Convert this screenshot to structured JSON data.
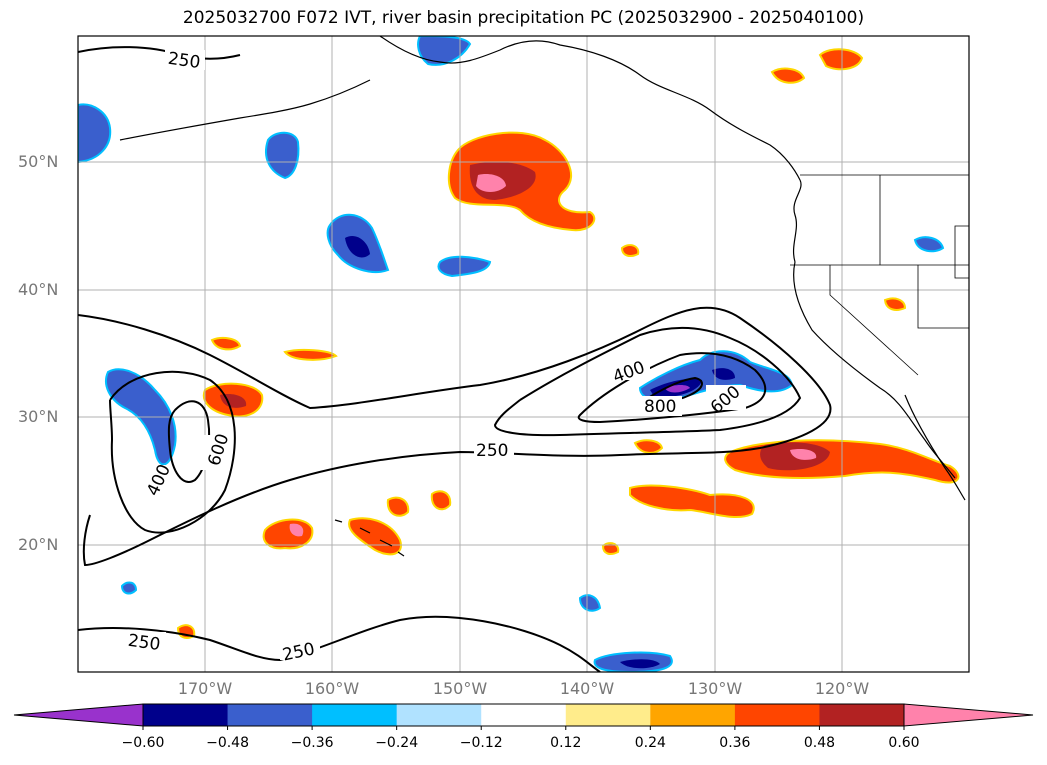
{
  "title": "2025032700 F072 IVT, river basin precipitation PC (2025032900 - 2025040100)",
  "lat_labels": [
    "50°N",
    "40°N",
    "30°N",
    "20°N"
  ],
  "lon_labels": [
    "170°W",
    "160°W",
    "150°W",
    "140°W",
    "130°W",
    "120°W"
  ],
  "contour_labels": [
    "250",
    "250",
    "250",
    "250",
    "400",
    "400",
    "600",
    "600",
    "800"
  ],
  "colorbar": {
    "ticks": [
      "−0.60",
      "−0.48",
      "−0.36",
      "−0.24",
      "−0.12",
      "0.12",
      "0.24",
      "0.36",
      "0.48",
      "0.60"
    ],
    "colors": [
      "#9932cc",
      "#00008b",
      "#3a5fcd",
      "#00bfff",
      "#b0e2ff",
      "#ffffff",
      "#ffec8b",
      "#ffa500",
      "#ff4500",
      "#b22222",
      "#ff82ab"
    ]
  },
  "colors": {
    "contour": "#000000",
    "grid": "#b0b0b0",
    "coast": "#000000"
  }
}
